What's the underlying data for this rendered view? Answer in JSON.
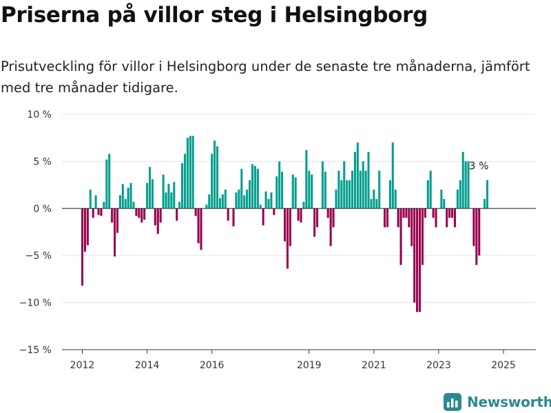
{
  "header": {
    "title": "Priserna på villor steg i Helsingborg",
    "subtitle": "Prisutveckling för villor i Helsingborg under de senaste tre månaderna, jämfört med tre månader tidigare."
  },
  "brand": {
    "name": "Newsworthy",
    "icon": "chart-logo-icon",
    "color": "#2c8a8f"
  },
  "chart_data": {
    "type": "bar",
    "unit": "%",
    "colors": {
      "positive": "#009e8e",
      "negative": "#99004d"
    },
    "grid": true,
    "ylim": [
      -15,
      10
    ],
    "y_ticks": [
      {
        "value": 10,
        "label": "10 %"
      },
      {
        "value": 5,
        "label": "5 %"
      },
      {
        "value": 0,
        "label": "0 %"
      },
      {
        "value": -5,
        "label": "−5 %"
      },
      {
        "value": -10,
        "label": "−10 %"
      },
      {
        "value": -15,
        "label": "−15 %"
      }
    ],
    "x_ticks": [
      {
        "value": "2012-01",
        "label": "2012"
      },
      {
        "value": "2014-01",
        "label": "2014"
      },
      {
        "value": "2016-01",
        "label": "2016"
      },
      {
        "value": "2019-01",
        "label": "2019"
      },
      {
        "value": "2021-01",
        "label": "2021"
      },
      {
        "value": "2023-01",
        "label": "2023"
      },
      {
        "value": "2025-01",
        "label": "2025"
      }
    ],
    "end_label": "3 %",
    "series": [
      {
        "x_start": "2012-01",
        "frequency": "monthly",
        "values": [
          -8.2,
          -4.6,
          -3.9,
          2.0,
          -1.0,
          1.4,
          -0.7,
          -0.8,
          0.7,
          5.2,
          5.8,
          -1.5,
          -5.1,
          -2.6,
          1.4,
          2.6,
          1.0,
          2.2,
          2.7,
          0.7,
          -0.8,
          -1.0,
          -1.5,
          -1.2,
          2.7,
          4.4,
          3.1,
          -1.8,
          -2.7,
          -1.5,
          3.6,
          1.7,
          2.6,
          1.7,
          2.8,
          -1.3,
          0.7,
          4.8,
          5.8,
          7.5,
          7.7,
          7.7,
          -0.8,
          -3.7,
          -4.4,
          0.0,
          0.4,
          1.5,
          5.8,
          7.2,
          6.6,
          1.1,
          1.5,
          2.0,
          -1.3,
          0.0,
          -1.9,
          1.7,
          2.0,
          4.2,
          1.4,
          2.0,
          3.0,
          4.7,
          4.5,
          4.2,
          0.4,
          -1.8,
          1.8,
          1.0,
          1.7,
          -0.7,
          3.4,
          5.0,
          3.9,
          -3.5,
          -6.4,
          -4.0,
          3.6,
          3.3,
          -1.3,
          -1.5,
          0.7,
          6.2,
          4.0,
          3.6,
          -3.0,
          -2.0,
          0.0,
          5.0,
          3.9,
          -1.0,
          -4.0,
          -2.0,
          2.0,
          4.0,
          3.0,
          5.0,
          3.0,
          3.0,
          4.0,
          6.0,
          7.0,
          4.0,
          5.0,
          4.0,
          6.0,
          1.0,
          2.0,
          1.0,
          4.0,
          0.0,
          -2.0,
          -2.0,
          3.0,
          7.0,
          2.0,
          -2.0,
          -6.0,
          -1.0,
          -1.0,
          -2.0,
          -4.0,
          -10.0,
          -11.0,
          -11.0,
          -6.0,
          -1.0,
          3.0,
          4.0,
          -1.0,
          -2.0,
          0.0,
          2.0,
          1.0,
          -2.0,
          -1.0,
          -1.0,
          -2.0,
          2.0,
          3.0,
          6.0,
          5.0,
          5.0,
          0.0,
          -4.0,
          -6.0,
          -5.0,
          0.0,
          1.0,
          3.0
        ]
      }
    ]
  }
}
